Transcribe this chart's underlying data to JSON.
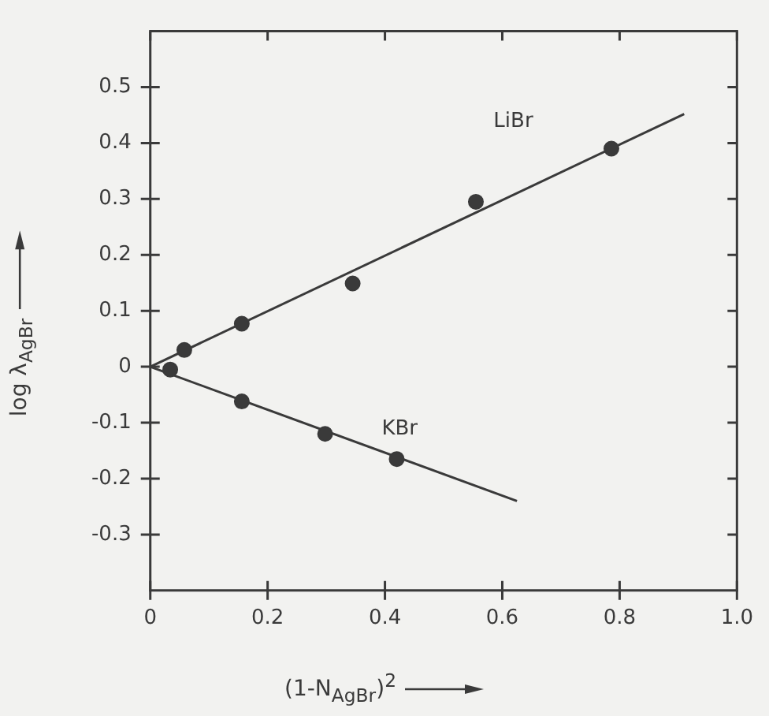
{
  "chart_data": {
    "type": "scatter",
    "xlabel": "(1-N$_{AgBr}$)$^{2}$",
    "ylabel": "log λ$_{AgBr}$",
    "series": [
      {
        "color": "#3a3a3a",
        "marker": "circle",
        "x": [
          0.058,
          0.156,
          0.345,
          0.555,
          0.786
        ],
        "values": [
          0.03,
          0.077,
          0.149,
          0.295,
          0.39
        ]
      },
      {
        "type": "line",
        "name": "LiBr",
        "color": "#3a3a3a",
        "x": [
          0,
          0.91
        ],
        "values": [
          0,
          0.452
        ]
      },
      {
        "color": "#3a3a3a",
        "marker": "circle",
        "x": [
          0.034,
          0.156,
          0.298,
          0.42
        ],
        "values": [
          -0.005,
          -0.062,
          -0.12,
          -0.165
        ]
      },
      {
        "type": "line",
        "name": "KBr",
        "color": "#3a3a3a",
        "x": [
          0,
          0.625
        ],
        "values": [
          0,
          -0.24
        ]
      }
    ],
    "xlim": [
      0,
      1
    ],
    "xticks": [
      0,
      0.2,
      0.4,
      0.6,
      0.8,
      {
        "value": 1,
        "label": "1.0"
      }
    ],
    "ylim": [
      -0.4,
      0.6
    ],
    "yticks": [
      -0.3,
      -0.2,
      -0.1,
      0,
      0.1,
      0.2,
      0.3,
      0.4,
      0.5
    ],
    "grid": false,
    "legend": false
  }
}
